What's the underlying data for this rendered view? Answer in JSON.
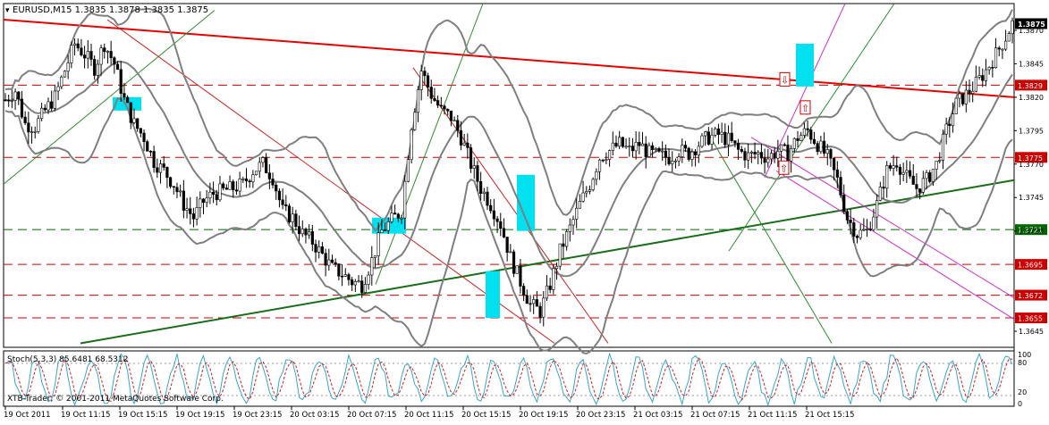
{
  "header": {
    "symbol_info": "EURUSD,M15  1.3835 1.3878 1.3835 1.3875"
  },
  "indicator": {
    "label": "Stoch(5,3,3) 85.6481 68.5312",
    "scale_labels": [
      "100",
      "80",
      "20",
      "0"
    ]
  },
  "watermark": "XTB-Trader, © 2001-2011 MetaQuotes Software Corp.",
  "colors": {
    "background": "#ffffff",
    "candle": "#000000",
    "bands": "#7f7f7f",
    "resistance_trendline": "#e60000",
    "support_trendline": "#1a6e1a",
    "channel_lines_green": "#2e8b2e",
    "channel_lines_magenta": "#cc33cc",
    "fan_lines_red": "#cc2222",
    "level_red": "#cc0000",
    "level_green": "#006600",
    "highlight_boxes": "#00e0ee",
    "stoch_main": "#3aa6c9",
    "stoch_signal": "#cc2222"
  },
  "chart_data": {
    "type": "candlestick",
    "symbol": "EURUSD",
    "timeframe": "M15",
    "ylim": [
      1.3633,
      1.389
    ],
    "y_ticks": [
      "1.3870",
      "1.3845",
      "1.3820",
      "1.3795",
      "1.3770",
      "1.3745",
      "1.3720",
      "1.3645"
    ],
    "x_ticks": [
      "19 Oct 2011",
      "19 Oct 11:15",
      "19 Oct 15:15",
      "19 Oct 19:15",
      "19 Oct 23:15",
      "20 Oct 03:15",
      "20 Oct 07:15",
      "20 Oct 11:15",
      "20 Oct 15:15",
      "20 Oct 19:15",
      "20 Oct 23:15",
      "21 Oct 03:15",
      "21 Oct 07:15",
      "21 Oct 11:15",
      "21 Oct 15:15"
    ],
    "current_price": "1.3875",
    "levels": [
      {
        "value": 1.3829,
        "label": "1.3829",
        "color": "red"
      },
      {
        "value": 1.3775,
        "label": "1.3775",
        "color": "red"
      },
      {
        "value": 1.3721,
        "label": "1.3721",
        "color": "green"
      },
      {
        "value": 1.3695,
        "label": "1.3695",
        "color": "red"
      },
      {
        "value": 1.3672,
        "label": "1.3672",
        "color": "red"
      },
      {
        "value": 1.3655,
        "label": "1.3655",
        "color": "red"
      }
    ],
    "price_path": [
      [
        0,
        1.3818
      ],
      [
        3,
        1.3825
      ],
      [
        6,
        1.38
      ],
      [
        9,
        1.3798
      ],
      [
        12,
        1.381
      ],
      [
        15,
        1.382
      ],
      [
        18,
        1.384
      ],
      [
        21,
        1.386
      ],
      [
        24,
        1.3852
      ],
      [
        27,
        1.3842
      ],
      [
        30,
        1.386
      ],
      [
        33,
        1.3845
      ],
      [
        36,
        1.3818
      ],
      [
        39,
        1.38
      ],
      [
        42,
        1.379
      ],
      [
        45,
        1.3772
      ],
      [
        48,
        1.3765
      ],
      [
        51,
        1.3755
      ],
      [
        54,
        1.374
      ],
      [
        57,
        1.373
      ],
      [
        60,
        1.3742
      ],
      [
        63,
        1.3748
      ],
      [
        66,
        1.375
      ],
      [
        69,
        1.3752
      ],
      [
        72,
        1.3755
      ],
      [
        75,
        1.3765
      ],
      [
        78,
        1.377
      ],
      [
        81,
        1.376
      ],
      [
        84,
        1.3735
      ],
      [
        87,
        1.373
      ],
      [
        90,
        1.3718
      ],
      [
        93,
        1.3712
      ],
      [
        96,
        1.3702
      ],
      [
        99,
        1.3692
      ],
      [
        102,
        1.3688
      ],
      [
        105,
        1.3682
      ],
      [
        108,
        1.368
      ],
      [
        111,
        1.3698
      ],
      [
        114,
        1.372
      ],
      [
        117,
        1.3728
      ],
      [
        120,
        1.3735
      ],
      [
        123,
        1.38
      ],
      [
        126,
        1.384
      ],
      [
        129,
        1.3822
      ],
      [
        132,
        1.381
      ],
      [
        135,
        1.3805
      ],
      [
        138,
        1.379
      ],
      [
        141,
        1.377
      ],
      [
        144,
        1.3752
      ],
      [
        147,
        1.374
      ],
      [
        150,
        1.3725
      ],
      [
        153,
        1.37
      ],
      [
        156,
        1.3682
      ],
      [
        159,
        1.3665
      ],
      [
        162,
        1.366
      ],
      [
        165,
        1.368
      ],
      [
        168,
        1.3705
      ],
      [
        171,
        1.3722
      ],
      [
        174,
        1.374
      ],
      [
        177,
        1.3755
      ],
      [
        180,
        1.3775
      ],
      [
        183,
        1.378
      ],
      [
        186,
        1.3785
      ],
      [
        189,
        1.378
      ],
      [
        192,
        1.3785
      ],
      [
        195,
        1.3778
      ],
      [
        198,
        1.3776
      ],
      [
        201,
        1.3775
      ],
      [
        204,
        1.378
      ],
      [
        207,
        1.3778
      ],
      [
        210,
        1.3785
      ],
      [
        213,
        1.379
      ],
      [
        216,
        1.3792
      ],
      [
        219,
        1.3788
      ],
      [
        222,
        1.378
      ],
      [
        225,
        1.3776
      ],
      [
        228,
        1.3778
      ],
      [
        231,
        1.3775
      ],
      [
        234,
        1.378
      ],
      [
        237,
        1.3778
      ],
      [
        240,
        1.379
      ],
      [
        243,
        1.3795
      ],
      [
        246,
        1.3785
      ],
      [
        249,
        1.3775
      ],
      [
        252,
        1.3758
      ],
      [
        255,
        1.373
      ],
      [
        258,
        1.3718
      ],
      [
        261,
        1.372
      ],
      [
        264,
        1.374
      ],
      [
        267,
        1.3765
      ],
      [
        270,
        1.3772
      ],
      [
        273,
        1.376
      ],
      [
        276,
        1.3752
      ],
      [
        279,
        1.3758
      ],
      [
        282,
        1.377
      ],
      [
        285,
        1.3795
      ],
      [
        288,
        1.3815
      ],
      [
        291,
        1.3822
      ],
      [
        294,
        1.383
      ],
      [
        297,
        1.384
      ],
      [
        300,
        1.3852
      ],
      [
        303,
        1.3865
      ],
      [
        305,
        1.3875
      ]
    ]
  }
}
